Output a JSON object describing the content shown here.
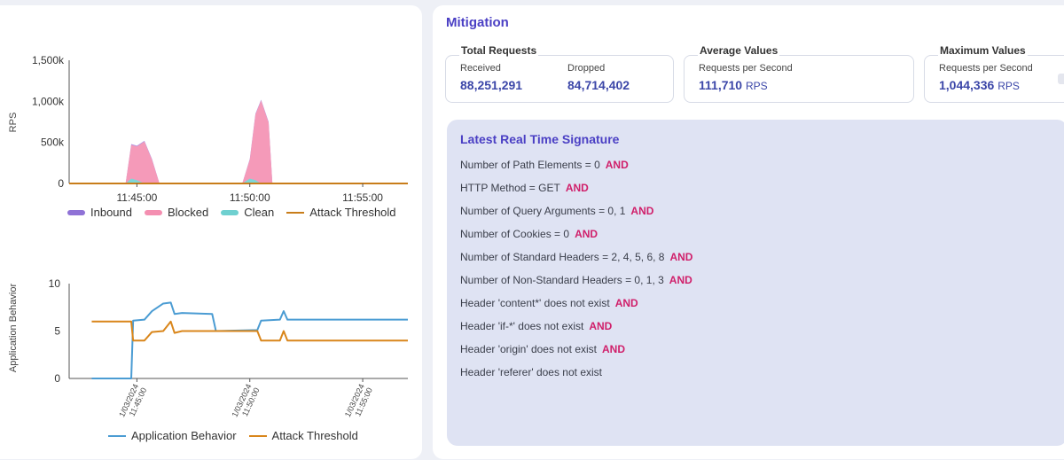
{
  "rps_chart": {
    "ylabel": "RPS",
    "y_ticks": [
      "1,500k",
      "1,000k",
      "500k",
      "0"
    ],
    "x_ticks": [
      "11:45:00",
      "11:50:00",
      "11:55:00"
    ],
    "legend": [
      {
        "label": "Inbound",
        "color": "#8f72d6",
        "style": "pill"
      },
      {
        "label": "Blocked",
        "color": "#f48fb1",
        "style": "pill"
      },
      {
        "label": "Clean",
        "color": "#6fd0d0",
        "style": "pill"
      },
      {
        "label": "Attack Threshold",
        "color": "#c87d1a",
        "style": "line"
      }
    ]
  },
  "behavior_chart": {
    "ylabel": "Application Behavior",
    "y_ticks": [
      "10",
      "5",
      "0"
    ],
    "x_ticks": [
      "1/03/2024 11:45:00",
      "1/03/2024 11:50:00",
      "1/03/2024 11:55:00"
    ],
    "legend": [
      {
        "label": "Application Behavior",
        "color": "#4b9cd3",
        "style": "line"
      },
      {
        "label": "Attack Threshold",
        "color": "#d9861b",
        "style": "line"
      }
    ]
  },
  "chart_data": [
    {
      "type": "area",
      "ylabel": "RPS",
      "x": [
        "11:43:00",
        "11:44:00",
        "11:44:30",
        "11:44:45",
        "11:45:00",
        "11:45:20",
        "11:45:40",
        "11:46:00",
        "11:49:40",
        "11:50:00",
        "11:50:15",
        "11:50:30",
        "11:50:50",
        "11:51:00",
        "11:51:10"
      ],
      "series": [
        {
          "name": "Inbound",
          "values": [
            0,
            0,
            0,
            480000,
            460000,
            520000,
            300000,
            0,
            0,
            300000,
            850000,
            1020000,
            750000,
            0,
            0
          ]
        },
        {
          "name": "Blocked",
          "values": [
            0,
            0,
            0,
            470000,
            450000,
            510000,
            290000,
            0,
            0,
            290000,
            840000,
            1010000,
            740000,
            0,
            0
          ]
        },
        {
          "name": "Clean",
          "values": [
            0,
            0,
            0,
            60000,
            40000,
            0,
            0,
            0,
            0,
            60000,
            40000,
            0,
            0,
            0,
            0
          ]
        },
        {
          "name": "Attack Threshold",
          "values": [
            0,
            0,
            0,
            0,
            0,
            0,
            0,
            0,
            0,
            0,
            0,
            0,
            0,
            0,
            0
          ]
        }
      ],
      "ylim": [
        0,
        1500000
      ]
    },
    {
      "type": "line",
      "ylabel": "Application Behavior",
      "x": [
        "11:43:00",
        "11:44:45",
        "11:44:50",
        "11:45:20",
        "11:45:40",
        "11:46:10",
        "11:46:30",
        "11:46:40",
        "11:47:00",
        "11:48:20",
        "11:48:30",
        "11:50:20",
        "11:50:30",
        "11:51:20",
        "11:51:30",
        "11:51:40",
        "11:57:00"
      ],
      "series": [
        {
          "name": "Application Behavior",
          "values": [
            0,
            0,
            6.1,
            6.2,
            7.1,
            7.9,
            8.0,
            6.8,
            6.9,
            6.8,
            5.0,
            5.1,
            6.1,
            6.2,
            7.1,
            6.2,
            6.2
          ]
        },
        {
          "name": "Attack Threshold",
          "values": [
            6.0,
            6.0,
            4.0,
            4.0,
            4.9,
            5.0,
            6.0,
            4.8,
            5.0,
            5.0,
            5.0,
            5.0,
            4.0,
            4.0,
            5.0,
            4.0,
            4.0
          ]
        }
      ],
      "ylim": [
        0,
        10
      ]
    }
  ],
  "mitigation": {
    "title": "Mitigation",
    "total": {
      "title": "Total Requests",
      "received_label": "Received",
      "received": "88,251,291",
      "dropped_label": "Dropped",
      "dropped": "84,714,402"
    },
    "average": {
      "title": "Average Values",
      "label": "Requests per Second",
      "value": "111,710",
      "unit": "RPS"
    },
    "maximum": {
      "title": "Maximum Values",
      "label": "Requests per Second",
      "value": "1,044,336",
      "unit": "RPS"
    }
  },
  "signature": {
    "title": "Latest Real Time Signature",
    "lines": [
      {
        "text": "Number of Path Elements = 0",
        "op": "AND"
      },
      {
        "text": "HTTP Method = GET",
        "op": "AND"
      },
      {
        "text": "Number of Query Arguments = 0, 1",
        "op": "AND"
      },
      {
        "text": "Number of Cookies = 0",
        "op": "AND"
      },
      {
        "text": "Number of Standard Headers = 2, 4, 5, 6, 8",
        "op": "AND"
      },
      {
        "text": "Number of Non-Standard Headers = 0, 1, 3",
        "op": "AND"
      },
      {
        "text": "Header 'content*' does not exist",
        "op": "AND"
      },
      {
        "text": "Header 'if-*' does not exist",
        "op": "AND"
      },
      {
        "text": "Header 'origin' does not exist",
        "op": "AND"
      },
      {
        "text": "Header 'referer' does not exist",
        "op": ""
      }
    ]
  }
}
